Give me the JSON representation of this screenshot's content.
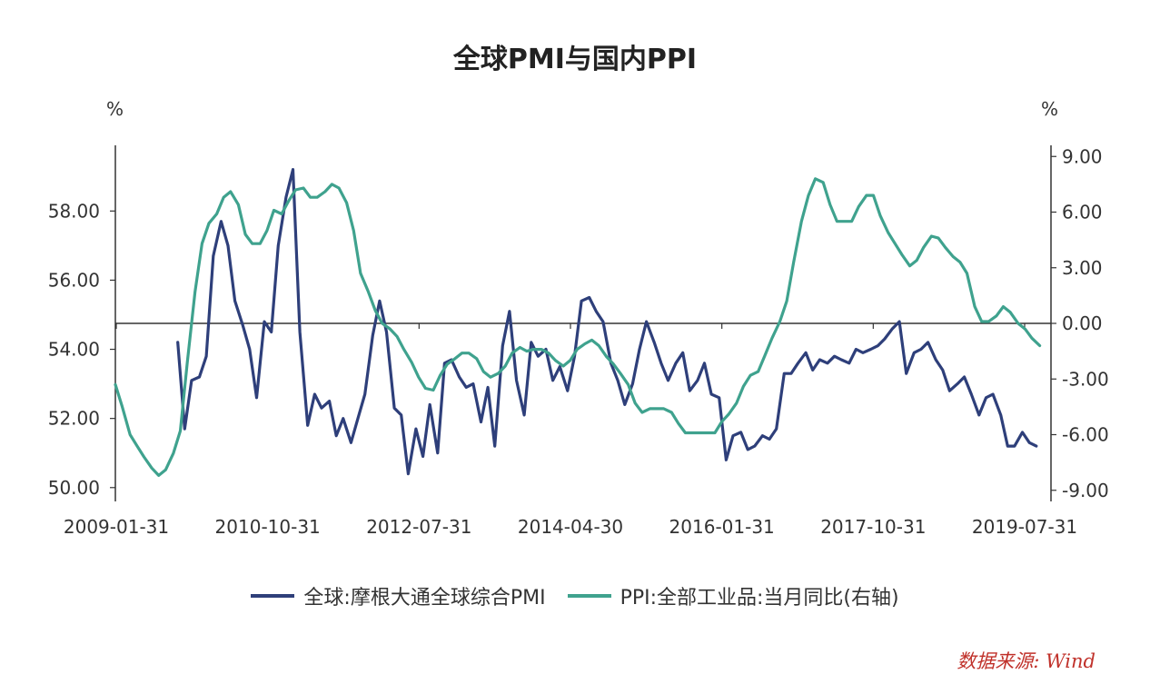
{
  "chart_data": {
    "type": "line",
    "title": "全球PMI与国内PPI",
    "left_unit": "%",
    "right_unit": "%",
    "x_tick_labels": [
      "2009-01-31",
      "2010-10-31",
      "2012-07-31",
      "2014-04-30",
      "2016-01-31",
      "2017-10-31",
      "2019-07-31"
    ],
    "left_axis": {
      "ylim": [
        49.6,
        59.9
      ],
      "ticks": [
        "50.00",
        "52.00",
        "54.00",
        "56.00",
        "58.00"
      ]
    },
    "right_axis": {
      "ylim": [
        -9.6,
        9.6
      ],
      "ticks": [
        "9.00",
        "6.00",
        "3.00",
        "0.00",
        "-3.00",
        "-6.00",
        "-9.00"
      ]
    },
    "x_range": [
      2009.0,
      2019.8
    ],
    "series": [
      {
        "name": "全球:摩根大通全球综合PMI",
        "axis": "left",
        "color": "#2e3f7a",
        "points": [
          [
            2009.72,
            54.2
          ],
          [
            2009.8,
            51.7
          ],
          [
            2009.88,
            53.1
          ],
          [
            2009.97,
            53.2
          ],
          [
            2010.05,
            53.8
          ],
          [
            2010.13,
            56.7
          ],
          [
            2010.22,
            57.7
          ],
          [
            2010.3,
            57.0
          ],
          [
            2010.38,
            55.4
          ],
          [
            2010.47,
            54.7
          ],
          [
            2010.55,
            54.0
          ],
          [
            2010.63,
            52.6
          ],
          [
            2010.72,
            54.8
          ],
          [
            2010.8,
            54.5
          ],
          [
            2010.88,
            57.0
          ],
          [
            2010.97,
            58.4
          ],
          [
            2011.05,
            59.2
          ],
          [
            2011.13,
            54.5
          ],
          [
            2011.22,
            51.8
          ],
          [
            2011.3,
            52.7
          ],
          [
            2011.38,
            52.3
          ],
          [
            2011.47,
            52.5
          ],
          [
            2011.55,
            51.5
          ],
          [
            2011.63,
            52.0
          ],
          [
            2011.72,
            51.3
          ],
          [
            2011.8,
            52.0
          ],
          [
            2011.88,
            52.7
          ],
          [
            2011.97,
            54.4
          ],
          [
            2012.05,
            55.4
          ],
          [
            2012.13,
            54.5
          ],
          [
            2012.22,
            52.3
          ],
          [
            2012.3,
            52.1
          ],
          [
            2012.38,
            50.4
          ],
          [
            2012.47,
            51.7
          ],
          [
            2012.55,
            50.9
          ],
          [
            2012.63,
            52.4
          ],
          [
            2012.72,
            51.0
          ],
          [
            2012.8,
            53.6
          ],
          [
            2012.88,
            53.7
          ],
          [
            2012.97,
            53.2
          ],
          [
            2013.05,
            52.9
          ],
          [
            2013.13,
            53.0
          ],
          [
            2013.22,
            51.9
          ],
          [
            2013.3,
            52.9
          ],
          [
            2013.38,
            51.2
          ],
          [
            2013.47,
            54.1
          ],
          [
            2013.55,
            55.1
          ],
          [
            2013.63,
            53.1
          ],
          [
            2013.72,
            52.1
          ],
          [
            2013.8,
            54.2
          ],
          [
            2013.88,
            53.8
          ],
          [
            2013.97,
            54.0
          ],
          [
            2014.05,
            53.1
          ],
          [
            2014.13,
            53.5
          ],
          [
            2014.22,
            52.8
          ],
          [
            2014.3,
            53.8
          ],
          [
            2014.38,
            55.4
          ],
          [
            2014.47,
            55.5
          ],
          [
            2014.55,
            55.1
          ],
          [
            2014.63,
            54.8
          ],
          [
            2014.72,
            53.6
          ],
          [
            2014.8,
            53.1
          ],
          [
            2014.88,
            52.4
          ],
          [
            2014.97,
            53.0
          ],
          [
            2015.05,
            54.0
          ],
          [
            2015.13,
            54.8
          ],
          [
            2015.22,
            54.2
          ],
          [
            2015.3,
            53.6
          ],
          [
            2015.38,
            53.1
          ],
          [
            2015.47,
            53.6
          ],
          [
            2015.55,
            53.9
          ],
          [
            2015.63,
            52.8
          ],
          [
            2015.72,
            53.1
          ],
          [
            2015.8,
            53.6
          ],
          [
            2015.88,
            52.7
          ],
          [
            2015.97,
            52.6
          ],
          [
            2016.05,
            50.8
          ],
          [
            2016.13,
            51.5
          ],
          [
            2016.22,
            51.6
          ],
          [
            2016.3,
            51.1
          ],
          [
            2016.38,
            51.2
          ],
          [
            2016.47,
            51.5
          ],
          [
            2016.55,
            51.4
          ],
          [
            2016.63,
            51.7
          ],
          [
            2016.72,
            53.3
          ],
          [
            2016.8,
            53.3
          ],
          [
            2016.88,
            53.6
          ],
          [
            2016.97,
            53.9
          ],
          [
            2017.05,
            53.4
          ],
          [
            2017.13,
            53.7
          ],
          [
            2017.22,
            53.6
          ],
          [
            2017.3,
            53.8
          ],
          [
            2017.38,
            53.7
          ],
          [
            2017.47,
            53.6
          ],
          [
            2017.55,
            54.0
          ],
          [
            2017.63,
            53.9
          ],
          [
            2017.72,
            54.0
          ],
          [
            2017.8,
            54.1
          ],
          [
            2017.88,
            54.3
          ],
          [
            2017.97,
            54.6
          ],
          [
            2018.05,
            54.8
          ],
          [
            2018.13,
            53.3
          ],
          [
            2018.22,
            53.9
          ],
          [
            2018.3,
            54.0
          ],
          [
            2018.38,
            54.2
          ],
          [
            2018.47,
            53.7
          ],
          [
            2018.55,
            53.4
          ],
          [
            2018.63,
            52.8
          ],
          [
            2018.72,
            53.0
          ],
          [
            2018.8,
            53.2
          ],
          [
            2018.88,
            52.7
          ],
          [
            2018.97,
            52.1
          ],
          [
            2019.05,
            52.6
          ],
          [
            2019.13,
            52.7
          ],
          [
            2019.22,
            52.1
          ],
          [
            2019.3,
            51.2
          ],
          [
            2019.38,
            51.2
          ],
          [
            2019.47,
            51.6
          ],
          [
            2019.55,
            51.3
          ],
          [
            2019.63,
            51.2
          ]
        ]
      },
      {
        "name": "PPI:全部工业品:当月同比(右轴)",
        "axis": "right",
        "color": "#3fa28e",
        "points": [
          [
            2009.0,
            -3.3
          ],
          [
            2009.08,
            -4.5
          ],
          [
            2009.17,
            -6.0
          ],
          [
            2009.25,
            -6.6
          ],
          [
            2009.33,
            -7.2
          ],
          [
            2009.42,
            -7.8
          ],
          [
            2009.5,
            -8.2
          ],
          [
            2009.58,
            -7.9
          ],
          [
            2009.67,
            -7.0
          ],
          [
            2009.75,
            -5.8
          ],
          [
            2009.83,
            -2.1
          ],
          [
            2009.92,
            1.7
          ],
          [
            2010.0,
            4.3
          ],
          [
            2010.08,
            5.4
          ],
          [
            2010.17,
            5.9
          ],
          [
            2010.25,
            6.8
          ],
          [
            2010.33,
            7.1
          ],
          [
            2010.42,
            6.4
          ],
          [
            2010.5,
            4.8
          ],
          [
            2010.58,
            4.3
          ],
          [
            2010.67,
            4.3
          ],
          [
            2010.75,
            5.0
          ],
          [
            2010.83,
            6.1
          ],
          [
            2010.92,
            5.9
          ],
          [
            2011.0,
            6.6
          ],
          [
            2011.08,
            7.2
          ],
          [
            2011.17,
            7.3
          ],
          [
            2011.25,
            6.8
          ],
          [
            2011.33,
            6.8
          ],
          [
            2011.42,
            7.1
          ],
          [
            2011.5,
            7.5
          ],
          [
            2011.58,
            7.3
          ],
          [
            2011.67,
            6.5
          ],
          [
            2011.75,
            5.0
          ],
          [
            2011.83,
            2.7
          ],
          [
            2011.92,
            1.7
          ],
          [
            2012.0,
            0.7
          ],
          [
            2012.08,
            0.0
          ],
          [
            2012.17,
            -0.3
          ],
          [
            2012.25,
            -0.7
          ],
          [
            2012.33,
            -1.4
          ],
          [
            2012.42,
            -2.1
          ],
          [
            2012.5,
            -2.9
          ],
          [
            2012.58,
            -3.5
          ],
          [
            2012.67,
            -3.6
          ],
          [
            2012.75,
            -2.8
          ],
          [
            2012.83,
            -2.2
          ],
          [
            2012.92,
            -1.9
          ],
          [
            2013.0,
            -1.6
          ],
          [
            2013.08,
            -1.6
          ],
          [
            2013.17,
            -1.9
          ],
          [
            2013.25,
            -2.6
          ],
          [
            2013.33,
            -2.9
          ],
          [
            2013.42,
            -2.7
          ],
          [
            2013.5,
            -2.3
          ],
          [
            2013.58,
            -1.6
          ],
          [
            2013.67,
            -1.3
          ],
          [
            2013.75,
            -1.5
          ],
          [
            2013.83,
            -1.4
          ],
          [
            2013.92,
            -1.4
          ],
          [
            2014.0,
            -1.6
          ],
          [
            2014.08,
            -2.0
          ],
          [
            2014.17,
            -2.3
          ],
          [
            2014.25,
            -2.0
          ],
          [
            2014.33,
            -1.4
          ],
          [
            2014.42,
            -1.1
          ],
          [
            2014.5,
            -0.9
          ],
          [
            2014.58,
            -1.2
          ],
          [
            2014.67,
            -1.8
          ],
          [
            2014.75,
            -2.2
          ],
          [
            2014.83,
            -2.7
          ],
          [
            2014.92,
            -3.3
          ],
          [
            2015.0,
            -4.3
          ],
          [
            2015.08,
            -4.8
          ],
          [
            2015.17,
            -4.6
          ],
          [
            2015.25,
            -4.6
          ],
          [
            2015.33,
            -4.6
          ],
          [
            2015.42,
            -4.8
          ],
          [
            2015.5,
            -5.4
          ],
          [
            2015.58,
            -5.9
          ],
          [
            2015.67,
            -5.9
          ],
          [
            2015.75,
            -5.9
          ],
          [
            2015.83,
            -5.9
          ],
          [
            2015.92,
            -5.9
          ],
          [
            2016.0,
            -5.3
          ],
          [
            2016.08,
            -4.9
          ],
          [
            2016.17,
            -4.3
          ],
          [
            2016.25,
            -3.4
          ],
          [
            2016.33,
            -2.8
          ],
          [
            2016.42,
            -2.6
          ],
          [
            2016.5,
            -1.7
          ],
          [
            2016.58,
            -0.8
          ],
          [
            2016.67,
            0.1
          ],
          [
            2016.75,
            1.2
          ],
          [
            2016.83,
            3.3
          ],
          [
            2016.92,
            5.5
          ],
          [
            2017.0,
            6.9
          ],
          [
            2017.08,
            7.8
          ],
          [
            2017.17,
            7.6
          ],
          [
            2017.25,
            6.4
          ],
          [
            2017.33,
            5.5
          ],
          [
            2017.42,
            5.5
          ],
          [
            2017.5,
            5.5
          ],
          [
            2017.58,
            6.3
          ],
          [
            2017.67,
            6.9
          ],
          [
            2017.75,
            6.9
          ],
          [
            2017.83,
            5.8
          ],
          [
            2017.92,
            4.9
          ],
          [
            2018.0,
            4.3
          ],
          [
            2018.08,
            3.7
          ],
          [
            2018.17,
            3.1
          ],
          [
            2018.25,
            3.4
          ],
          [
            2018.33,
            4.1
          ],
          [
            2018.42,
            4.7
          ],
          [
            2018.5,
            4.6
          ],
          [
            2018.58,
            4.1
          ],
          [
            2018.67,
            3.6
          ],
          [
            2018.75,
            3.3
          ],
          [
            2018.83,
            2.7
          ],
          [
            2018.92,
            0.9
          ],
          [
            2019.0,
            0.1
          ],
          [
            2019.08,
            0.1
          ],
          [
            2019.17,
            0.4
          ],
          [
            2019.25,
            0.9
          ],
          [
            2019.33,
            0.6
          ],
          [
            2019.42,
            0.0
          ],
          [
            2019.5,
            -0.3
          ],
          [
            2019.58,
            -0.8
          ],
          [
            2019.67,
            -1.2
          ]
        ]
      }
    ]
  },
  "source": "数据来源: Wind"
}
